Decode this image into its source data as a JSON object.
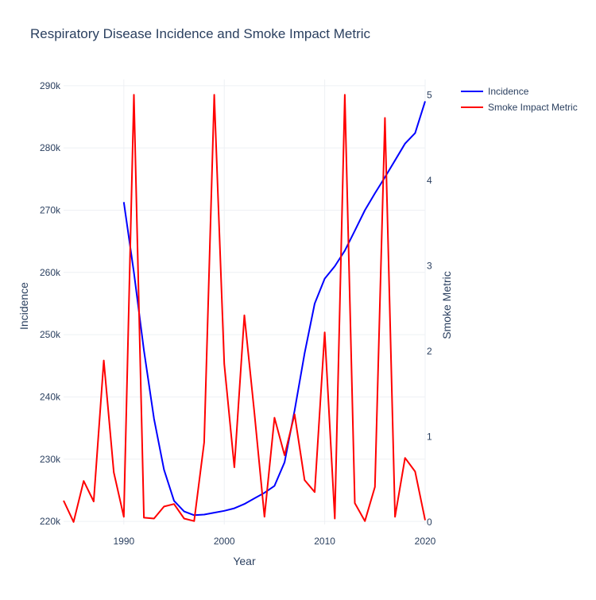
{
  "chart_data": {
    "type": "line",
    "title": "Respiratory Disease Incidence and Smoke Impact Metric",
    "xlabel": "Year",
    "ylabel": "Incidence",
    "y2label": "Smoke Metric",
    "xlim": [
      1984,
      2020
    ],
    "ylim": [
      219500,
      291000
    ],
    "y2lim": [
      -0.03,
      5.18
    ],
    "x_ticks": [
      1990,
      2000,
      2010,
      2020
    ],
    "x_tick_labels": [
      "1990",
      "2000",
      "2010",
      "2020"
    ],
    "y_ticks": [
      220000,
      230000,
      240000,
      250000,
      260000,
      270000,
      280000,
      290000
    ],
    "y_tick_labels": [
      "220k",
      "230k",
      "240k",
      "250k",
      "260k",
      "270k",
      "280k",
      "290k"
    ],
    "y2_ticks": [
      0,
      1,
      2,
      3,
      4,
      5
    ],
    "y2_tick_labels": [
      "0",
      "1",
      "2",
      "3",
      "4",
      "5"
    ],
    "grid": true,
    "legend_position": "top-right",
    "series": [
      {
        "name": "Incidence",
        "axis": "left",
        "color": "#0000ff",
        "x": [
          1990,
          1991,
          1992,
          1993,
          1994,
          1995,
          1996,
          1997,
          1998,
          1999,
          2000,
          2001,
          2002,
          2003,
          2004,
          2005,
          2006,
          2007,
          2008,
          2009,
          2010,
          2011,
          2012,
          2013,
          2014,
          2015,
          2016,
          2017,
          2018,
          2019,
          2020
        ],
        "values": [
          271300,
          260000,
          247500,
          236500,
          228300,
          223300,
          221600,
          221000,
          221100,
          221400,
          221700,
          222100,
          222800,
          223700,
          224600,
          225700,
          229500,
          237800,
          247000,
          255000,
          259000,
          261000,
          263500,
          266700,
          270000,
          272700,
          275300,
          278000,
          280700,
          282400,
          287500
        ]
      },
      {
        "name": "Smoke Impact Metric",
        "axis": "right",
        "color": "#ff0000",
        "x": [
          1984,
          1985,
          1986,
          1987,
          1988,
          1989,
          1990,
          1991,
          1992,
          1993,
          1994,
          1995,
          1996,
          1997,
          1998,
          1999,
          2000,
          2001,
          2002,
          2003,
          2004,
          2005,
          2006,
          2007,
          2008,
          2009,
          2010,
          2011,
          2012,
          2013,
          2014,
          2015,
          2016,
          2017,
          2018,
          2019,
          2020
        ],
        "values": [
          0.25,
          0.0,
          0.48,
          0.24,
          1.89,
          0.58,
          0.06,
          5.0,
          0.05,
          0.04,
          0.18,
          0.21,
          0.04,
          0.01,
          0.93,
          5.0,
          1.85,
          0.64,
          2.42,
          1.28,
          0.06,
          1.22,
          0.78,
          1.26,
          0.49,
          0.35,
          2.22,
          0.04,
          5.0,
          0.22,
          0.01,
          0.41,
          4.73,
          0.06,
          0.75,
          0.59,
          0.02
        ]
      }
    ]
  }
}
